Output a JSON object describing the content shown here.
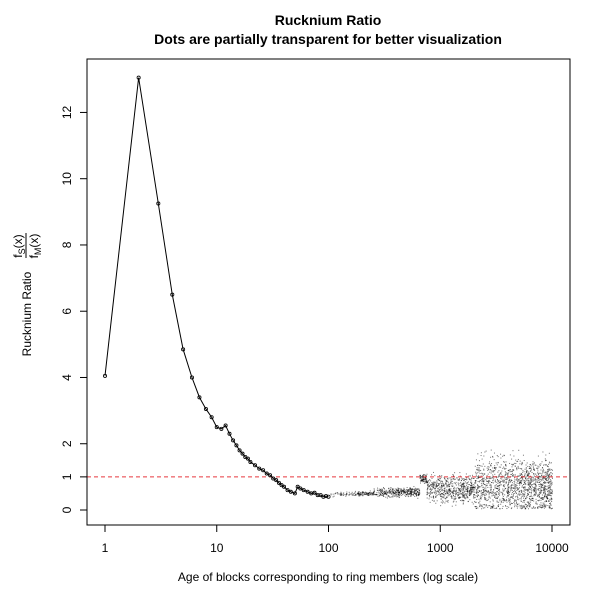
{
  "chart_data": {
    "type": "scatter",
    "title": "Rucknium Ratio",
    "subtitle": "Dots are partially transparent for better visualization",
    "xlabel": "Age of blocks corresponding to ring members (log scale)",
    "ylabel": {
      "text": "Rucknium Ratio",
      "fraction": {
        "numerator": {
          "base": "f",
          "sub": "S",
          "rest": "(x)"
        },
        "denominator": {
          "base": "f",
          "sub": "M",
          "rest": "(x)"
        }
      }
    },
    "x_scale": "log",
    "xlim": [
      1,
      10000
    ],
    "ylim": [
      0,
      13.1
    ],
    "x_ticks": [
      1,
      10,
      100,
      1000,
      10000
    ],
    "x_tick_labels": [
      "1",
      "10",
      "100",
      "1000",
      "10000"
    ],
    "y_ticks": [
      0,
      1,
      2,
      4,
      6,
      8,
      10,
      12
    ],
    "y_tick_labels": [
      "0",
      "1",
      "2",
      "4",
      "6",
      "8",
      "10",
      "12"
    ],
    "reference_line": {
      "y": 1,
      "style": "dashed",
      "color": "#e8383d"
    },
    "series": [
      {
        "style": "line-with-points",
        "x": [
          1,
          2,
          3,
          4,
          5,
          6,
          7,
          8,
          9,
          10,
          11,
          12,
          13,
          14,
          15,
          16,
          17,
          18,
          19,
          20,
          22,
          24,
          26,
          28,
          30,
          32,
          34,
          36,
          38,
          40,
          43,
          46,
          50,
          53,
          56,
          60,
          65,
          70,
          75,
          80,
          85,
          90,
          95,
          100
        ],
        "y": [
          4.05,
          13.05,
          9.25,
          6.5,
          4.85,
          4.0,
          3.4,
          3.05,
          2.8,
          2.5,
          2.45,
          2.55,
          2.3,
          2.1,
          1.95,
          1.8,
          1.7,
          1.6,
          1.55,
          1.45,
          1.35,
          1.25,
          1.2,
          1.1,
          1.05,
          0.95,
          0.9,
          0.82,
          0.75,
          0.7,
          0.6,
          0.55,
          0.5,
          0.7,
          0.65,
          0.6,
          0.55,
          0.5,
          0.52,
          0.45,
          0.45,
          0.4,
          0.42,
          0.4
        ]
      },
      {
        "style": "transparent-dots",
        "x_range": [
          100,
          10000
        ],
        "points": 2600,
        "segments": [
          {
            "x": [
              100,
              250
            ],
            "y_center": 0.5,
            "spread": 0.05
          },
          {
            "x": [
              250,
              650
            ],
            "y_center": 0.55,
            "spread": 0.1
          },
          {
            "x": [
              650,
              750
            ],
            "y_center": 0.95,
            "spread": 0.1
          },
          {
            "x": [
              750,
              2000
            ],
            "y_center": 0.65,
            "spread": 0.3
          },
          {
            "x": [
              2000,
              10000
            ],
            "y_center": 0.75,
            "spread": 0.6
          }
        ]
      }
    ],
    "colors": {
      "points": "#000000",
      "reference": "#e8383d",
      "frame": "#000000"
    }
  }
}
